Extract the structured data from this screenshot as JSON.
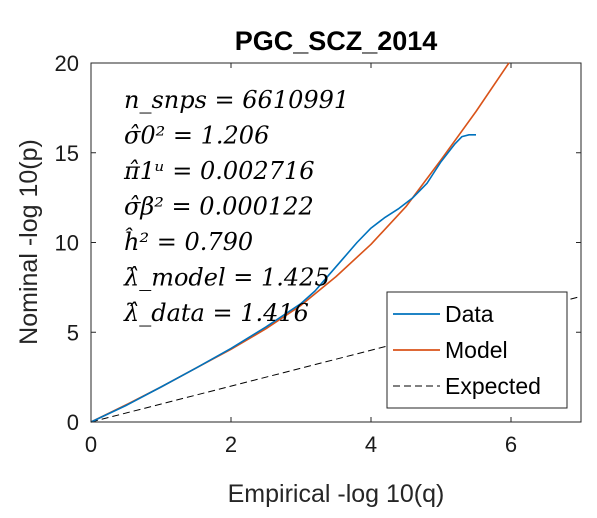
{
  "chart_data": {
    "type": "line",
    "title": "PGC_SCZ_2014",
    "xlabel": "Empirical -log 10(q)",
    "ylabel": "Nominal -log 10(p)",
    "xlim": [
      0,
      7
    ],
    "ylim": [
      0,
      20
    ],
    "xticks": [
      "0",
      "2",
      "4",
      "6"
    ],
    "yticks": [
      "0",
      "5",
      "10",
      "15",
      "20"
    ],
    "grid": false,
    "legend_position": "bottom-right",
    "annotations": [
      "n_snps = 6610991",
      "σ̂0² = 1.206",
      "π̂1ᵘ = 0.002716",
      "σ̂β² = 0.000122",
      "ĥ² = 0.790",
      "λ̂_model = 1.425",
      "λ̂_data = 1.416"
    ],
    "series": [
      {
        "name": "Data",
        "color": "#0072bd",
        "style": "solid",
        "x": [
          0,
          0.5,
          1.0,
          1.5,
          2.0,
          2.5,
          3.0,
          3.2,
          3.4,
          3.6,
          3.8,
          4.0,
          4.2,
          4.4,
          4.6,
          4.8,
          4.9,
          5.0,
          5.1,
          5.2,
          5.3,
          5.4,
          5.5
        ],
        "y": [
          0,
          0.92,
          1.95,
          3.0,
          4.1,
          5.3,
          6.6,
          7.3,
          8.2,
          9.1,
          10.0,
          10.8,
          11.4,
          11.9,
          12.5,
          13.3,
          13.9,
          14.5,
          15.0,
          15.5,
          15.9,
          16.0,
          16.0
        ]
      },
      {
        "name": "Model",
        "color": "#d95319",
        "style": "solid",
        "x": [
          0,
          0.5,
          1.0,
          1.5,
          2.0,
          2.5,
          3.0,
          3.5,
          4.0,
          4.5,
          5.0,
          5.5,
          5.97
        ],
        "y": [
          0,
          0.95,
          1.95,
          3.0,
          4.05,
          5.2,
          6.5,
          8.1,
          9.9,
          12.0,
          14.6,
          17.3,
          20.0
        ]
      },
      {
        "name": "Expected",
        "color": "#000000",
        "style": "dashed",
        "x": [
          0,
          7
        ],
        "y": [
          0,
          7
        ]
      }
    ]
  }
}
